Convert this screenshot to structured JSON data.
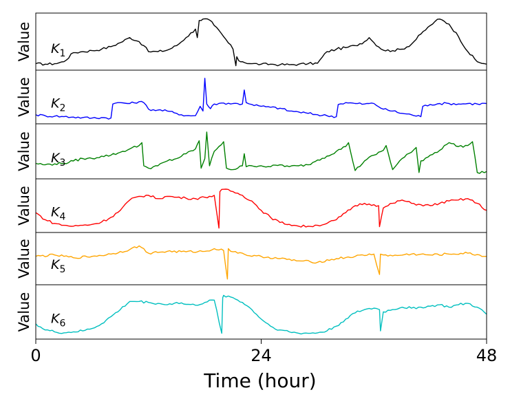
{
  "chart_data": {
    "type": "line",
    "xlabel": "Time (hour)",
    "ylabel": "Value",
    "xlim": [
      0,
      48
    ],
    "xticks": [
      "0",
      "24",
      "48"
    ],
    "panels": [
      {
        "label": "K",
        "sub": "1",
        "color": "#000000",
        "ylim": [
          0,
          1
        ],
        "x": [
          0,
          1,
          2,
          3,
          4,
          5,
          6,
          7,
          8,
          9,
          10,
          11,
          11.5,
          12,
          13,
          14,
          15,
          16,
          17,
          17.2,
          17.4,
          17.8,
          18.5,
          19,
          20,
          21,
          21.3,
          21.4,
          21.6,
          22,
          23,
          24,
          25,
          26,
          27,
          28,
          29,
          30,
          31,
          32,
          33,
          34,
          35,
          35.5,
          36,
          37,
          38,
          39,
          40,
          41,
          42,
          42.5,
          43,
          44,
          45,
          46,
          47,
          48
        ],
        "values": [
          0.06,
          0.05,
          0.06,
          0.1,
          0.28,
          0.3,
          0.32,
          0.35,
          0.4,
          0.48,
          0.58,
          0.5,
          0.42,
          0.3,
          0.3,
          0.33,
          0.42,
          0.58,
          0.75,
          0.58,
          0.92,
          0.95,
          0.93,
          0.82,
          0.6,
          0.35,
          0.02,
          0.2,
          0.12,
          0.1,
          0.06,
          0.05,
          0.05,
          0.04,
          0.04,
          0.05,
          0.06,
          0.07,
          0.3,
          0.35,
          0.38,
          0.42,
          0.5,
          0.58,
          0.48,
          0.33,
          0.32,
          0.35,
          0.45,
          0.65,
          0.82,
          0.9,
          0.95,
          0.85,
          0.6,
          0.3,
          0.1,
          0.05
        ]
      },
      {
        "label": "K",
        "sub": "2",
        "color": "#0000ff",
        "ylim": [
          0,
          1
        ],
        "x": [
          0,
          1,
          2,
          3,
          4,
          5,
          6,
          7,
          8,
          8.2,
          9,
          10,
          11,
          11.5,
          12,
          13,
          14,
          15,
          16,
          17,
          17.5,
          17.8,
          18,
          18.2,
          18.6,
          19,
          20,
          21,
          22,
          22.2,
          22.4,
          23,
          24,
          25,
          26,
          27,
          28,
          29,
          30,
          31,
          32,
          32.2,
          33,
          34,
          35,
          36,
          37,
          38,
          39,
          40,
          41,
          41.2,
          42,
          43,
          44,
          45,
          46,
          47,
          48
        ],
        "values": [
          0.12,
          0.1,
          0.09,
          0.08,
          0.07,
          0.06,
          0.05,
          0.06,
          0.05,
          0.35,
          0.38,
          0.36,
          0.4,
          0.38,
          0.24,
          0.22,
          0.2,
          0.15,
          0.1,
          0.1,
          0.3,
          0.2,
          0.9,
          0.35,
          0.25,
          0.35,
          0.37,
          0.36,
          0.35,
          0.65,
          0.38,
          0.34,
          0.3,
          0.28,
          0.26,
          0.2,
          0.18,
          0.15,
          0.12,
          0.1,
          0.08,
          0.34,
          0.38,
          0.36,
          0.35,
          0.36,
          0.24,
          0.2,
          0.15,
          0.12,
          0.08,
          0.3,
          0.34,
          0.36,
          0.36,
          0.35,
          0.36,
          0.35,
          0.36
        ]
      },
      {
        "label": "K",
        "sub": "3",
        "color": "#008000",
        "ylim": [
          0,
          1
        ],
        "x": [
          0,
          1,
          2,
          3,
          4,
          5,
          6,
          7,
          8,
          9,
          10,
          11,
          11.3,
          11.5,
          12,
          13,
          14,
          15,
          16,
          17,
          17.4,
          17.6,
          18,
          18.2,
          18.5,
          19,
          19.5,
          20,
          20.3,
          21,
          21.5,
          22,
          22.2,
          22.4,
          23,
          24,
          25,
          26,
          27,
          28,
          29,
          30,
          31,
          32,
          33,
          33.3,
          34,
          35,
          36,
          37,
          37.3,
          38,
          39,
          40,
          40.5,
          40.8,
          41,
          42,
          43,
          43.5,
          44,
          45,
          46,
          46.5,
          47,
          48
        ],
        "values": [
          0.25,
          0.22,
          0.24,
          0.25,
          0.3,
          0.35,
          0.35,
          0.4,
          0.42,
          0.48,
          0.55,
          0.62,
          0.68,
          0.2,
          0.15,
          0.2,
          0.3,
          0.35,
          0.45,
          0.55,
          0.72,
          0.15,
          0.35,
          0.9,
          0.2,
          0.5,
          0.6,
          0.7,
          0.15,
          0.12,
          0.15,
          0.2,
          0.45,
          0.18,
          0.2,
          0.2,
          0.18,
          0.22,
          0.18,
          0.2,
          0.22,
          0.32,
          0.4,
          0.5,
          0.6,
          0.68,
          0.1,
          0.3,
          0.42,
          0.52,
          0.62,
          0.12,
          0.35,
          0.48,
          0.58,
          0.06,
          0.3,
          0.42,
          0.52,
          0.62,
          0.68,
          0.6,
          0.62,
          0.7,
          0.06,
          0.08
        ]
      },
      {
        "label": "K",
        "sub": "4",
        "color": "#ff0000",
        "ylim": [
          0,
          1
        ],
        "x": [
          0,
          1,
          2,
          3,
          4,
          5,
          6,
          7,
          8,
          9,
          10,
          11,
          12,
          13,
          14,
          15,
          16,
          17,
          18,
          19,
          19.5,
          19.6,
          20,
          21,
          22,
          23,
          24,
          25,
          26,
          27,
          28,
          29,
          30,
          31,
          32,
          33,
          34,
          35,
          36,
          36.5,
          36.6,
          37,
          38,
          39,
          40,
          41,
          42,
          43,
          44,
          45,
          46,
          47,
          48
        ],
        "values": [
          0.35,
          0.2,
          0.12,
          0.08,
          0.06,
          0.08,
          0.1,
          0.15,
          0.25,
          0.4,
          0.62,
          0.7,
          0.72,
          0.65,
          0.7,
          0.68,
          0.66,
          0.65,
          0.68,
          0.72,
          0.02,
          0.8,
          0.85,
          0.8,
          0.72,
          0.6,
          0.4,
          0.25,
          0.14,
          0.1,
          0.06,
          0.06,
          0.08,
          0.12,
          0.2,
          0.35,
          0.5,
          0.55,
          0.52,
          0.5,
          0.05,
          0.45,
          0.55,
          0.62,
          0.55,
          0.52,
          0.5,
          0.55,
          0.6,
          0.62,
          0.65,
          0.55,
          0.4
        ]
      },
      {
        "label": "K",
        "sub": "5",
        "color": "#ffa500",
        "ylim": [
          0,
          1
        ],
        "x": [
          0,
          2,
          4,
          6,
          8,
          10,
          11,
          12,
          14,
          16,
          18,
          19,
          20,
          20.4,
          20.5,
          21,
          22,
          23,
          24,
          26,
          28,
          30,
          32,
          34,
          36,
          36.6,
          36.7,
          37,
          38,
          40,
          42,
          44,
          46,
          48
        ],
        "values": [
          0.55,
          0.58,
          0.52,
          0.55,
          0.6,
          0.7,
          0.78,
          0.62,
          0.66,
          0.65,
          0.66,
          0.72,
          0.68,
          0.05,
          0.72,
          0.65,
          0.62,
          0.55,
          0.55,
          0.5,
          0.45,
          0.42,
          0.5,
          0.55,
          0.6,
          0.15,
          0.6,
          0.58,
          0.56,
          0.6,
          0.58,
          0.6,
          0.62,
          0.55
        ]
      },
      {
        "label": "K",
        "sub": "6",
        "color": "#00bfbf",
        "ylim": [
          0,
          1
        ],
        "x": [
          0,
          1,
          2,
          3,
          4,
          5,
          6,
          7,
          8,
          9,
          10,
          11,
          12,
          13,
          14,
          15,
          16,
          17,
          18,
          19,
          19.8,
          19.9,
          20,
          21,
          22,
          23,
          24,
          25,
          26,
          27,
          28,
          29,
          30,
          31,
          32,
          33,
          34,
          35,
          36,
          36.6,
          36.7,
          37,
          38,
          39,
          40,
          41,
          42,
          43,
          44,
          45,
          46,
          47,
          48
        ],
        "values": [
          0.25,
          0.12,
          0.08,
          0.06,
          0.08,
          0.1,
          0.15,
          0.25,
          0.4,
          0.55,
          0.72,
          0.72,
          0.7,
          0.68,
          0.65,
          0.7,
          0.66,
          0.64,
          0.7,
          0.75,
          0.05,
          0.8,
          0.85,
          0.8,
          0.7,
          0.55,
          0.35,
          0.2,
          0.12,
          0.08,
          0.05,
          0.05,
          0.06,
          0.1,
          0.2,
          0.35,
          0.48,
          0.55,
          0.58,
          0.55,
          0.1,
          0.5,
          0.55,
          0.6,
          0.58,
          0.6,
          0.62,
          0.65,
          0.6,
          0.65,
          0.68,
          0.6,
          0.45
        ]
      }
    ]
  }
}
